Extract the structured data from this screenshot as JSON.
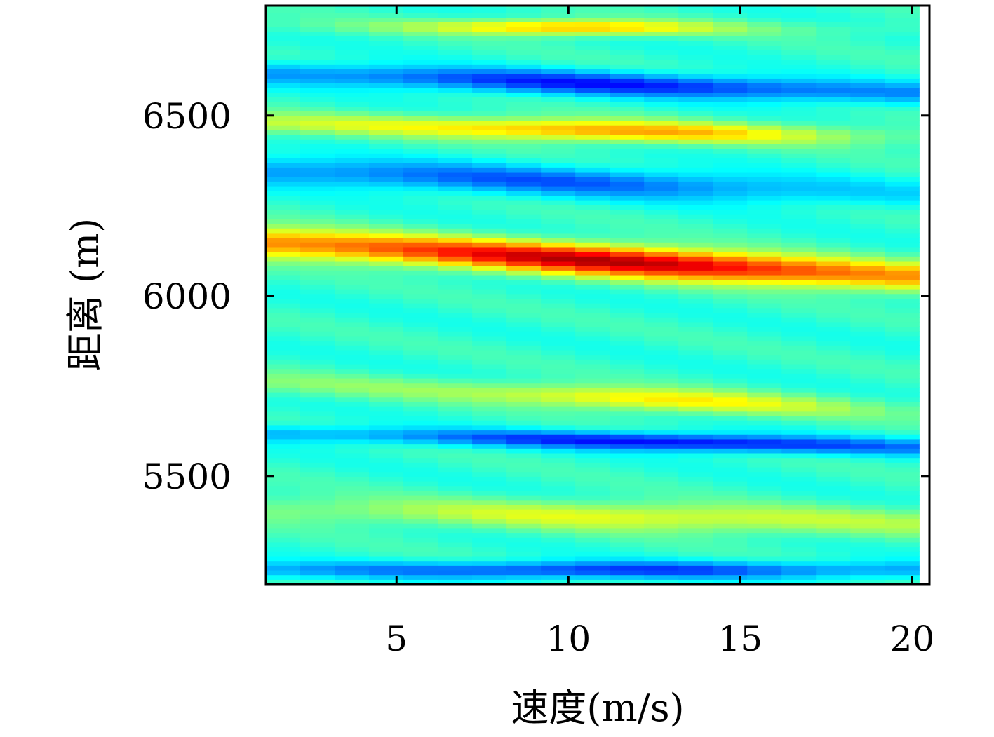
{
  "chart_data": {
    "type": "heatmap",
    "title": "",
    "xlabel": "速度(m/s)",
    "ylabel": "距离 (m)",
    "xlim": [
      1.2,
      20.5
    ],
    "ylim": [
      5200,
      6805
    ],
    "xticks": [
      {
        "value": 5,
        "label": "5"
      },
      {
        "value": 10,
        "label": "10"
      },
      {
        "value": 15,
        "label": "15"
      },
      {
        "value": 20,
        "label": "20"
      }
    ],
    "yticks": [
      {
        "value": 5500,
        "label": "5500"
      },
      {
        "value": 6000,
        "label": "6000"
      },
      {
        "value": 6500,
        "label": "6500"
      }
    ],
    "colormap": "jet",
    "grid": false,
    "x_centers": [
      1.7,
      2.7,
      3.7,
      4.7,
      5.7,
      6.7,
      7.7,
      8.7,
      9.7,
      10.7,
      11.7,
      12.7,
      13.7,
      14.7,
      15.7,
      16.7,
      17.7,
      18.7,
      19.7
    ],
    "ridges": [
      {
        "kind": "peak",
        "start": 6150,
        "end": 6050,
        "width": 42,
        "peak_value": 0.95,
        "peak_at": 11.5,
        "spread": 6,
        "start_value": 0.75,
        "end_value": 0.68
      },
      {
        "kind": "trough",
        "start": 6620,
        "end": 6560,
        "width": 32,
        "peak_value": 0.15,
        "peak_at": 11,
        "spread": 7,
        "start_value": 0.3,
        "end_value": 0.3
      },
      {
        "kind": "peak",
        "start": 6480,
        "end": 6440,
        "width": 30,
        "peak_value": 0.72,
        "peak_at": 11,
        "spread": 6,
        "start_value": 0.55,
        "end_value": 0.45
      },
      {
        "kind": "peak",
        "start": 6750,
        "end": 6740,
        "width": 22,
        "peak_value": 0.7,
        "peak_at": 10,
        "spread": 4,
        "start_value": 0.45,
        "end_value": 0.45
      },
      {
        "kind": "trough",
        "start": 6350,
        "end": 6280,
        "width": 40,
        "peak_value": 0.22,
        "peak_at": 9,
        "spread": 8,
        "start_value": 0.3,
        "end_value": 0.38
      },
      {
        "kind": "trough",
        "start": 5620,
        "end": 5580,
        "width": 24,
        "peak_value": 0.12,
        "peak_at": 13,
        "spread": 6,
        "start_value": 0.3,
        "end_value": 0.3
      },
      {
        "kind": "peak",
        "start": 5760,
        "end": 5680,
        "width": 32,
        "peak_value": 0.65,
        "peak_at": 12.5,
        "spread": 5,
        "start_value": 0.5,
        "end_value": 0.45
      },
      {
        "kind": "peak",
        "start": 5410,
        "end": 5370,
        "width": 40,
        "peak_value": 0.6,
        "peak_at": 12,
        "spread": 6,
        "start_value": 0.5,
        "end_value": 0.52
      },
      {
        "kind": "trough",
        "start": 5240,
        "end": 5240,
        "width": 24,
        "peak_value": 0.18,
        "peak_at": 11,
        "spread": 6,
        "start_value": 0.3,
        "end_value": 0.3
      }
    ]
  }
}
